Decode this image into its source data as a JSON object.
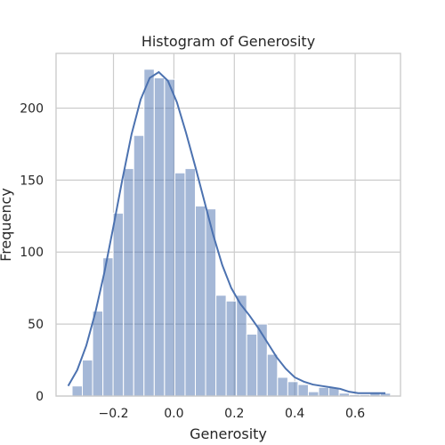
{
  "chart_data": {
    "type": "bar",
    "subtype": "histogram-with-kde",
    "title": "Histogram of Generosity",
    "xlabel": "Generosity",
    "ylabel": "Frequency",
    "xlim": [
      -0.39,
      0.75
    ],
    "ylim": [
      0,
      238
    ],
    "x_ticks": [
      -0.2,
      0.0,
      0.2,
      0.4,
      0.6
    ],
    "x_tick_labels": [
      "−0.2",
      "0.0",
      "0.2",
      "0.4",
      "0.6"
    ],
    "y_ticks": [
      0,
      50,
      100,
      150,
      200
    ],
    "y_tick_labels": [
      "0",
      "50",
      "100",
      "150",
      "200"
    ],
    "grid": true,
    "bar_color": "#4c72b0",
    "bin_edges": [
      -0.337,
      -0.303,
      -0.269,
      -0.235,
      -0.201,
      -0.167,
      -0.133,
      -0.099,
      -0.065,
      -0.031,
      0.003,
      0.037,
      0.071,
      0.105,
      0.139,
      0.173,
      0.207,
      0.241,
      0.275,
      0.309,
      0.343,
      0.377,
      0.411,
      0.445,
      0.479,
      0.513,
      0.547,
      0.581,
      0.615,
      0.649,
      0.683,
      0.717
    ],
    "counts": [
      7,
      25,
      59,
      96,
      127,
      158,
      181,
      227,
      221,
      220,
      155,
      158,
      132,
      130,
      70,
      66,
      70,
      43,
      50,
      29,
      13,
      10,
      8,
      3,
      6,
      6,
      2,
      1,
      1,
      2,
      2
    ],
    "kde": {
      "x": [
        -0.35,
        -0.32,
        -0.29,
        -0.26,
        -0.23,
        -0.2,
        -0.17,
        -0.14,
        -0.11,
        -0.08,
        -0.05,
        -0.02,
        0.01,
        0.04,
        0.07,
        0.1,
        0.13,
        0.16,
        0.19,
        0.22,
        0.25,
        0.28,
        0.31,
        0.34,
        0.37,
        0.4,
        0.43,
        0.46,
        0.49,
        0.52,
        0.55,
        0.58,
        0.61,
        0.64,
        0.67,
        0.7
      ],
      "y": [
        7,
        18,
        35,
        58,
        86,
        118,
        151,
        182,
        206,
        221,
        225,
        219,
        204,
        183,
        160,
        136,
        112,
        91,
        75,
        64,
        56,
        47,
        37,
        27,
        19,
        13,
        10,
        8,
        7,
        6,
        5,
        3,
        2,
        2,
        2,
        2
      ]
    }
  }
}
